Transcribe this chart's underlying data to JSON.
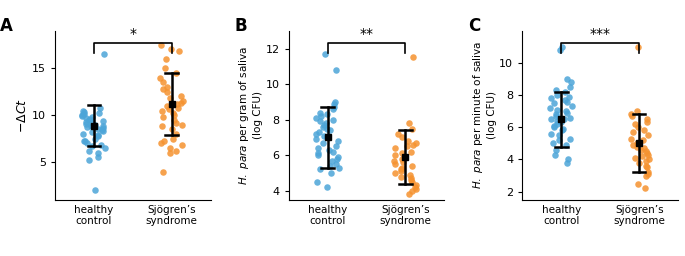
{
  "panel_A": {
    "label": "A",
    "ylim": [
      1,
      19
    ],
    "yticks": [
      5,
      10,
      15
    ],
    "sig": "*",
    "healthy": [
      9.8,
      10.2,
      10.0,
      9.5,
      9.7,
      10.1,
      9.3,
      9.6,
      8.8,
      9.0,
      9.2,
      8.5,
      8.7,
      8.3,
      8.0,
      7.8,
      8.2,
      7.5,
      7.2,
      7.0,
      6.8,
      6.5,
      6.2,
      7.9,
      8.9,
      9.4,
      10.3,
      10.5,
      9.1,
      8.6,
      7.3,
      6.7,
      16.5,
      2.0,
      5.5,
      5.2,
      6.0,
      8.4,
      9.9,
      10.8
    ],
    "sjogrens": [
      11.5,
      11.2,
      11.0,
      10.8,
      10.5,
      11.8,
      12.0,
      12.5,
      13.0,
      13.5,
      14.0,
      14.5,
      15.0,
      16.0,
      17.0,
      17.5,
      10.2,
      9.8,
      9.5,
      9.2,
      8.9,
      6.5,
      6.2,
      6.0,
      7.0,
      7.5,
      8.0,
      8.5,
      9.0,
      10.0,
      11.3,
      12.8,
      4.0,
      16.8,
      10.7,
      7.2,
      6.8
    ],
    "healthy_mean": 8.9,
    "healthy_sd": 2.2,
    "sjogrens_mean": 11.2,
    "sjogrens_sd": 3.3,
    "xticklabels": [
      "healthy\ncontrol",
      "Sjögren’s\nsyndrome"
    ]
  },
  "panel_B": {
    "label": "B",
    "ylim": [
      3.5,
      13
    ],
    "yticks": [
      4,
      6,
      8,
      10,
      12
    ],
    "sig": "**",
    "healthy": [
      7.9,
      8.1,
      8.3,
      8.0,
      7.8,
      7.5,
      7.2,
      7.0,
      6.8,
      6.5,
      6.2,
      6.0,
      5.8,
      5.5,
      5.2,
      5.0,
      6.9,
      7.3,
      7.6,
      8.4,
      8.7,
      9.0,
      7.1,
      6.7,
      6.4,
      6.1,
      5.7,
      5.4,
      4.5,
      4.2,
      11.7,
      10.8,
      8.6,
      7.4,
      6.3,
      5.9,
      5.3,
      7.7,
      8.2,
      8.9
    ],
    "sjogrens": [
      6.0,
      5.8,
      5.5,
      5.2,
      5.0,
      4.8,
      4.5,
      4.2,
      4.0,
      6.5,
      6.8,
      7.0,
      7.2,
      5.9,
      6.2,
      6.4,
      5.7,
      5.4,
      5.1,
      4.9,
      4.6,
      4.3,
      5.6,
      6.1,
      6.6,
      7.5,
      7.8,
      11.5,
      3.8,
      4.1,
      5.3,
      4.7,
      6.7
    ],
    "healthy_mean": 7.0,
    "healthy_sd": 1.7,
    "sjogrens_mean": 5.9,
    "sjogrens_sd": 1.5,
    "xticklabels": [
      "healthy\ncontrol",
      "Sjögren’s\nsyndrome"
    ]
  },
  "panel_C": {
    "label": "C",
    "ylim": [
      1.5,
      12
    ],
    "yticks": [
      2,
      4,
      6,
      8,
      10
    ],
    "sig": "***",
    "healthy": [
      6.5,
      6.8,
      7.0,
      7.2,
      7.5,
      7.8,
      8.0,
      8.2,
      6.2,
      5.9,
      5.6,
      5.3,
      5.0,
      6.0,
      6.3,
      6.6,
      6.9,
      7.3,
      7.6,
      5.5,
      5.2,
      4.9,
      4.6,
      8.5,
      8.8,
      9.0,
      5.8,
      6.1,
      6.4,
      6.7,
      7.1,
      10.8,
      11.0,
      4.3,
      4.0,
      3.8,
      7.9,
      8.3,
      6.5,
      7.7
    ],
    "sjogrens": [
      5.0,
      4.8,
      4.5,
      4.2,
      4.0,
      3.8,
      3.5,
      3.2,
      3.0,
      5.5,
      5.8,
      6.0,
      6.2,
      6.5,
      6.8,
      7.0,
      4.9,
      4.6,
      4.3,
      4.1,
      3.9,
      3.6,
      5.2,
      5.7,
      6.3,
      11.0,
      2.2,
      2.5,
      3.1,
      4.7,
      5.3,
      6.7,
      4.4
    ],
    "healthy_mean": 6.5,
    "healthy_sd": 1.7,
    "sjogrens_mean": 5.0,
    "sjogrens_sd": 1.8,
    "xticklabels": [
      "healthy\ncontrol",
      "Sjögren’s\nsyndrome"
    ]
  },
  "color_healthy": "#4CA5D8",
  "color_sjogrens": "#F5922F",
  "dot_size": 22,
  "dot_alpha": 0.85
}
